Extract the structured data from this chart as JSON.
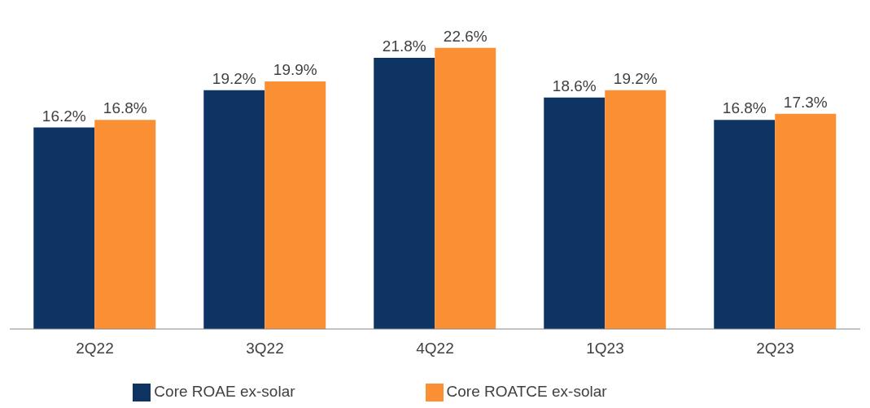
{
  "chart_data": {
    "type": "bar",
    "categories": [
      "2Q22",
      "3Q22",
      "4Q22",
      "1Q23",
      "2Q23"
    ],
    "series": [
      {
        "name": "Core ROAE ex-solar",
        "color": "#0e3463",
        "values": [
          16.2,
          19.2,
          21.8,
          18.6,
          16.8
        ],
        "value_labels": [
          "16.2%",
          "19.2%",
          "21.8%",
          "18.6%",
          "16.8%"
        ]
      },
      {
        "name": "Core ROATCE ex-solar",
        "color": "#fb8f33",
        "values": [
          16.8,
          19.9,
          22.6,
          19.2,
          17.3
        ],
        "value_labels": [
          "16.8%",
          "19.9%",
          "22.6%",
          "19.2%",
          "17.3%"
        ]
      }
    ],
    "legend": "bottom",
    "grid": false
  }
}
